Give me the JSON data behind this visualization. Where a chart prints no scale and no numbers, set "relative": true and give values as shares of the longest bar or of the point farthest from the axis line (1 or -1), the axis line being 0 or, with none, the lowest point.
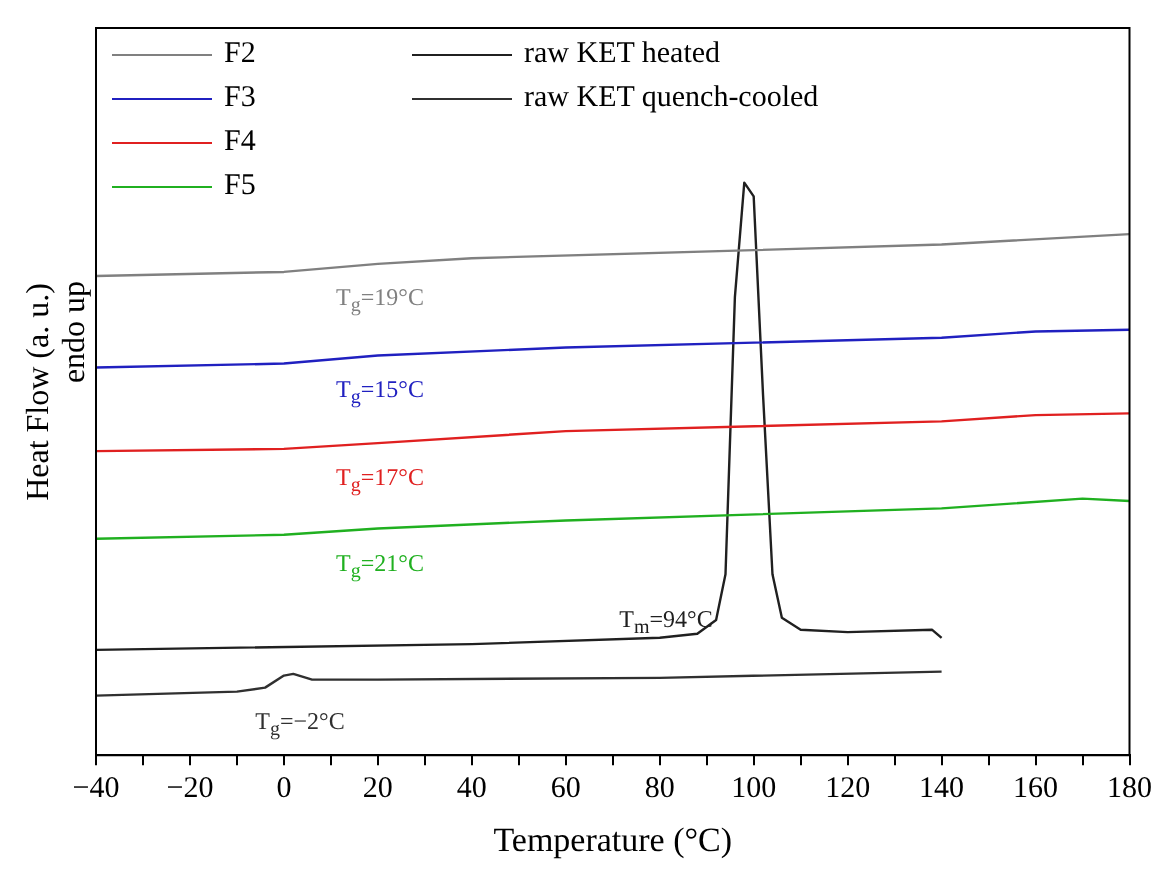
{
  "chart_data": {
    "type": "line",
    "relative": true,
    "xlabel": "Temperature (°C)",
    "ylabel": "Heat Flow (a. u.)",
    "xlim": [
      -40,
      180
    ],
    "xticks": [
      -40,
      {
        "value": -30,
        "label": null
      },
      -20,
      {
        "value": -10,
        "label": null
      },
      0,
      {
        "value": 10,
        "label": null
      },
      20,
      {
        "value": 30,
        "label": null
      },
      40,
      {
        "value": 50,
        "label": null
      },
      60,
      {
        "value": 70,
        "label": null
      },
      80,
      {
        "value": 90,
        "label": null
      },
      100,
      {
        "value": 110,
        "label": null
      },
      120,
      {
        "value": 130,
        "label": null
      },
      140,
      {
        "value": 150,
        "label": null
      },
      160,
      {
        "value": 170,
        "label": null
      },
      180
    ],
    "legend": "top left",
    "grid": false,
    "marker": "none",
    "line_style": "solid",
    "series": [
      {
        "name": "F2",
        "color": "#808080",
        "x": [
          -40,
          0,
          20,
          40,
          100,
          140,
          180
        ],
        "values": [
          0.837,
          0.844,
          0.858,
          0.868,
          0.882,
          0.892,
          0.91
        ]
      },
      {
        "name": "F3",
        "color": "#2020c0",
        "x": [
          -40,
          0,
          20,
          60,
          140,
          160,
          180
        ],
        "values": [
          0.677,
          0.684,
          0.698,
          0.712,
          0.729,
          0.74,
          0.743
        ]
      },
      {
        "name": "F4",
        "color": "#e02020",
        "x": [
          -40,
          0,
          20,
          60,
          140,
          160,
          180
        ],
        "values": [
          0.531,
          0.535,
          0.545,
          0.566,
          0.583,
          0.594,
          0.597
        ]
      },
      {
        "name": "F5",
        "color": "#20b020",
        "x": [
          -40,
          0,
          20,
          60,
          140,
          170,
          180
        ],
        "values": [
          0.378,
          0.385,
          0.396,
          0.41,
          0.431,
          0.448,
          0.444
        ]
      },
      {
        "name": "raw KET heated",
        "color": "#202020",
        "x": [
          -40,
          40,
          80,
          88,
          92,
          94,
          96,
          98,
          100,
          102,
          104,
          106,
          110,
          120,
          138,
          140
        ],
        "values": [
          0.184,
          0.194,
          0.205,
          0.212,
          0.236,
          0.316,
          0.8,
          1,
          0.976,
          0.628,
          0.316,
          0.24,
          0.219,
          0.215,
          0.219,
          0.205
        ]
      },
      {
        "name": "raw KET quench-cooled",
        "color": "#303030",
        "x": [
          -40,
          -10,
          -4,
          0,
          2,
          6,
          20,
          80,
          140
        ],
        "values": [
          0.104,
          0.111,
          0.118,
          0.139,
          0.142,
          0.132,
          0.132,
          0.135,
          0.146
        ]
      }
    ],
    "annotations": [
      "T$_{g}$=19°C",
      "T$_{g}$=15°C",
      "T$_{g}$=17°C",
      "T$_{g}$=21°C",
      "T$_{m}$=94°C",
      "T$_{g}$=−2°C",
      "endo up"
    ]
  }
}
